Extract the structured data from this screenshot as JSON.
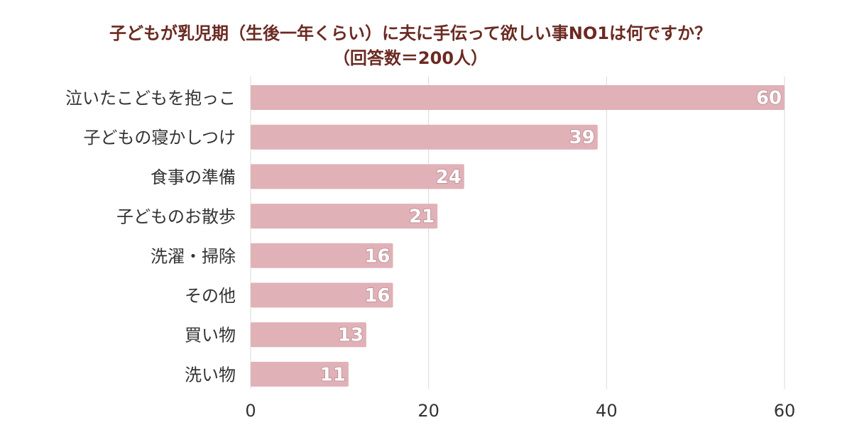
{
  "colors": {
    "bar": "#e1b1b8",
    "title": "#6b2a22",
    "grid": "#d9d9d9",
    "text": "#333333"
  },
  "chart_data": {
    "type": "bar",
    "orientation": "horizontal",
    "title": "子どもが乳児期（生後一年くらい）に夫に手伝って欲しい事NO1は何ですか？",
    "subtitle": "（回答数＝200人）",
    "categories": [
      "泣いたこどもを抱っこ",
      "子どもの寝かしつけ",
      "食事の準備",
      "子どものお散歩",
      "洗濯・掃除",
      "その他",
      "買い物",
      "洗い物"
    ],
    "values": [
      60,
      39,
      24,
      21,
      16,
      16,
      13,
      11
    ],
    "xlim": [
      0,
      60
    ],
    "xticks": [
      0,
      20,
      40,
      60
    ],
    "xlabel": "",
    "ylabel": "",
    "grid": true,
    "legend": "none"
  }
}
